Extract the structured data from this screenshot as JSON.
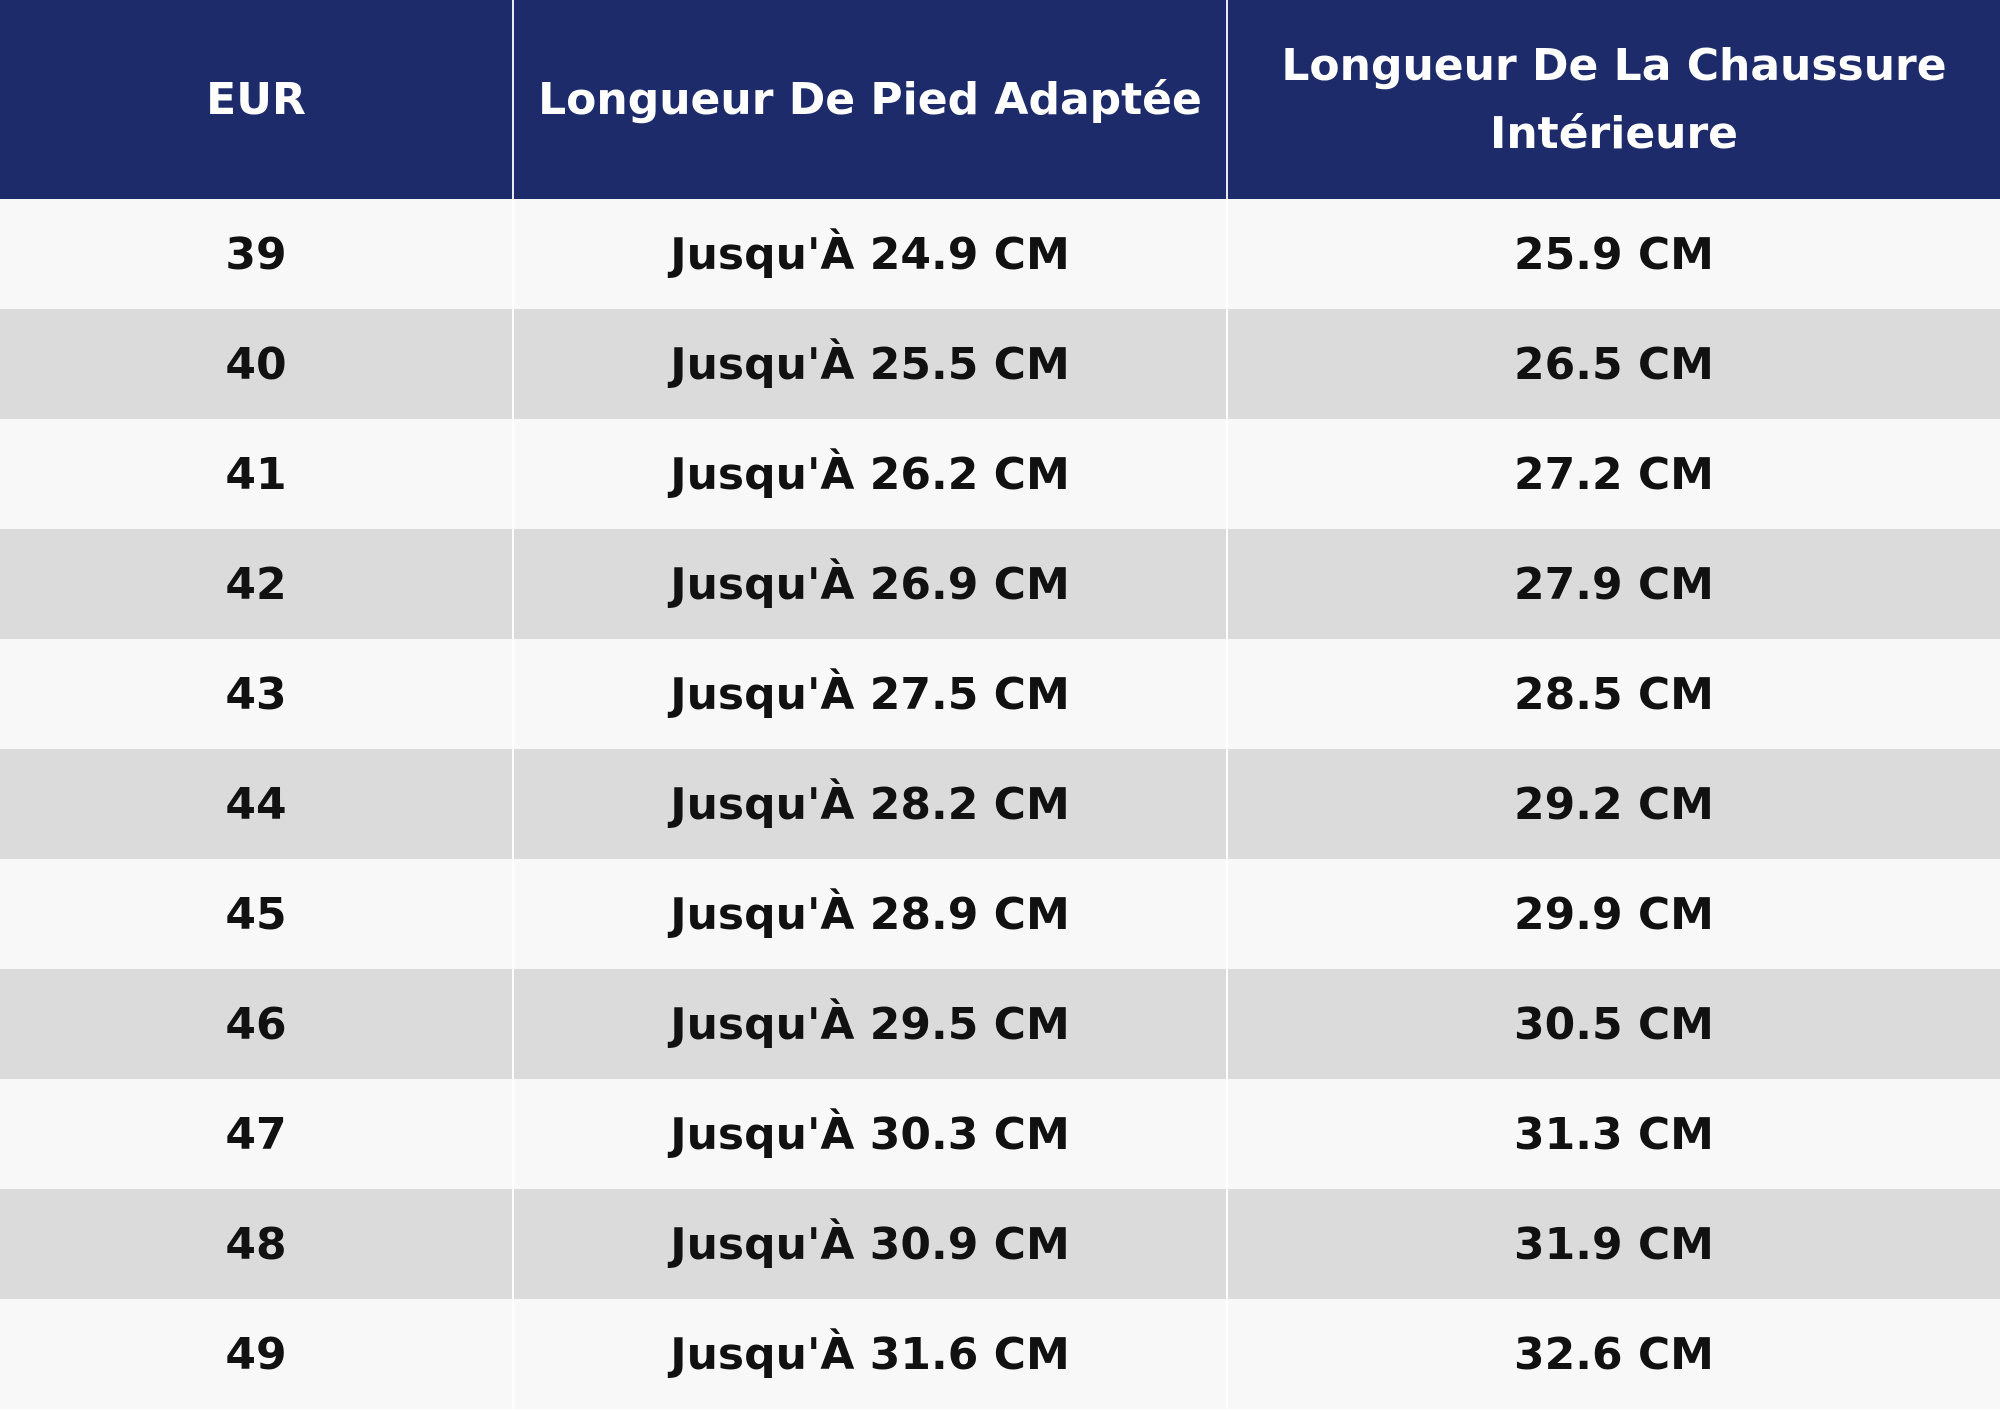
{
  "table": {
    "headers": [
      "EUR",
      "Longueur De Pied Adaptée",
      "Longueur De La Chaussure Intérieure"
    ],
    "rows": [
      [
        "39",
        "Jusqu'À 24.9 CM",
        "25.9 CM"
      ],
      [
        "40",
        "Jusqu'À 25.5 CM",
        "26.5 CM"
      ],
      [
        "41",
        "Jusqu'À 26.2 CM",
        "27.2 CM"
      ],
      [
        "42",
        "Jusqu'À 26.9 CM",
        "27.9 CM"
      ],
      [
        "43",
        "Jusqu'À 27.5 CM",
        "28.5 CM"
      ],
      [
        "44",
        "Jusqu'À 28.2 CM",
        "29.2 CM"
      ],
      [
        "45",
        "Jusqu'À 28.9 CM",
        "29.9 CM"
      ],
      [
        "46",
        "Jusqu'À 29.5 CM",
        "30.5 CM"
      ],
      [
        "47",
        "Jusqu'À 30.3 CM",
        "31.3 CM"
      ],
      [
        "48",
        "Jusqu'À 30.9 CM",
        "31.9 CM"
      ],
      [
        "49",
        "Jusqu'À 31.6 CM",
        "32.6 CM"
      ]
    ]
  }
}
